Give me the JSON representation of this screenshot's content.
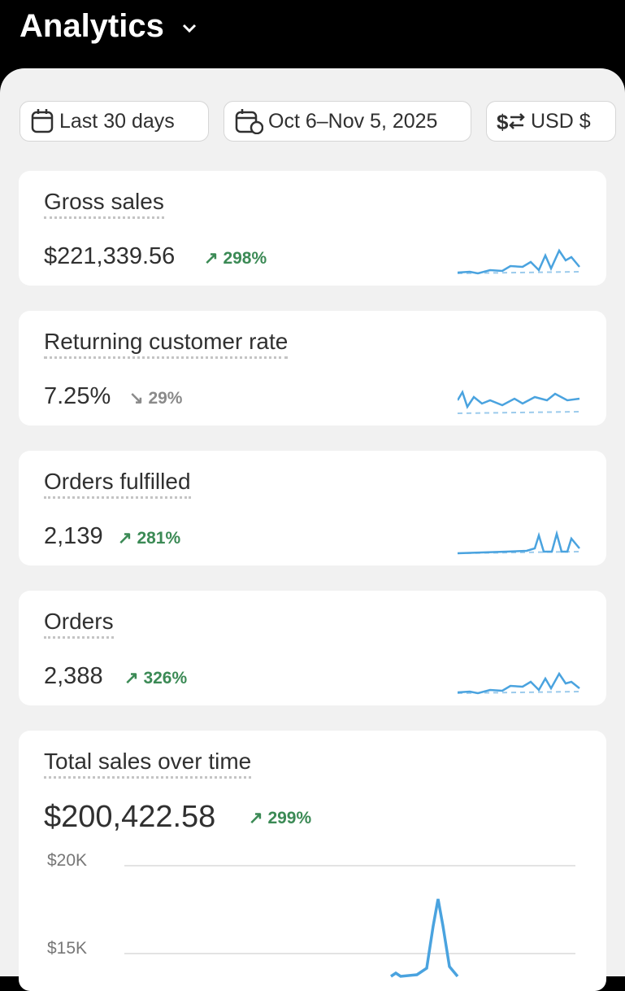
{
  "header": {
    "title": "Analytics"
  },
  "filters": {
    "date_range": "Last 30 days",
    "dates": "Oct 6–Nov 5, 2025",
    "currency": "USD $"
  },
  "metrics": [
    {
      "label": "Gross sales",
      "value": "$221,339.56",
      "change": "298%",
      "trend": "up"
    },
    {
      "label": "Returning customer rate",
      "value": "7.25%",
      "change": "29%",
      "trend": "down"
    },
    {
      "label": "Orders fulfilled",
      "value": "2,139",
      "change": "281%",
      "trend": "up"
    },
    {
      "label": "Orders",
      "value": "2,388",
      "change": "326%",
      "trend": "up"
    }
  ],
  "total_sales": {
    "label": "Total sales over time",
    "value": "$200,422.58",
    "change": "299%",
    "trend": "up",
    "yticks": [
      "$20K",
      "$15K"
    ]
  }
}
